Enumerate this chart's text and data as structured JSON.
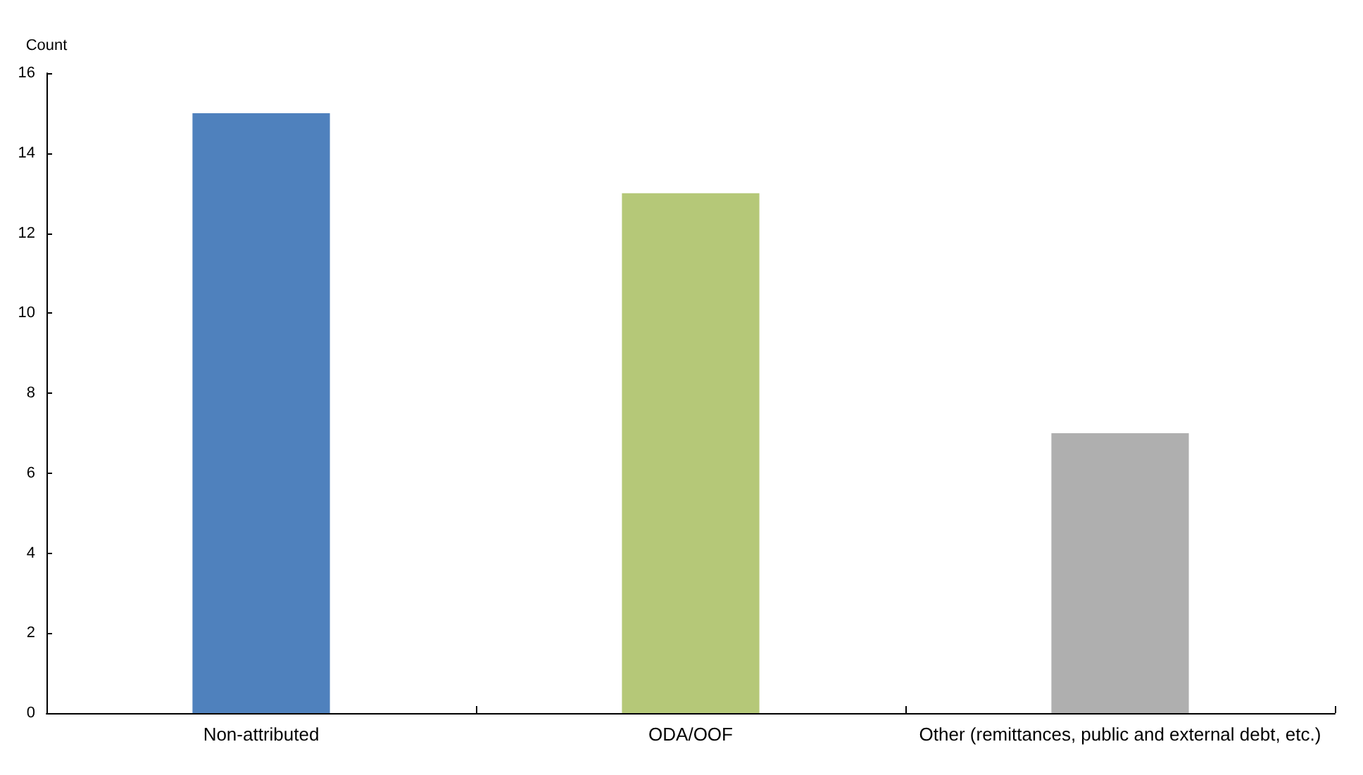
{
  "chart_data": {
    "type": "bar",
    "ylabel": "Count",
    "categories": [
      "Non-attributed",
      "ODA/OOF",
      "Other (remittances, public and external debt, etc.)"
    ],
    "values": [
      15,
      13,
      7
    ],
    "colors": [
      "#4f81bd",
      "#b5c878",
      "#afafaf"
    ],
    "ylim": [
      0,
      16
    ],
    "yticks": [
      0,
      2,
      4,
      6,
      8,
      10,
      12,
      14,
      16
    ],
    "grid": false
  }
}
